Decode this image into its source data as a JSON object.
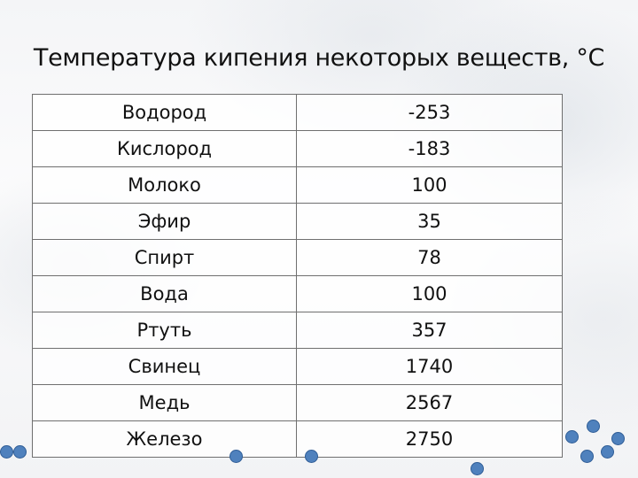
{
  "title": "Температура кипения некоторых веществ, °C",
  "rows": [
    {
      "substance": "Водород",
      "value": "-253"
    },
    {
      "substance": "Кислород",
      "value": "-183"
    },
    {
      "substance": "Молоко",
      "value": "100"
    },
    {
      "substance": "Эфир",
      "value": "35"
    },
    {
      "substance": "Спирт",
      "value": "78"
    },
    {
      "substance": "Вода",
      "value": "100"
    },
    {
      "substance": "Ртуть",
      "value": "357"
    },
    {
      "substance": "Свинец",
      "value": "1740"
    },
    {
      "substance": "Медь",
      "value": "2567"
    },
    {
      "substance": "Железо",
      "value": "2750"
    }
  ],
  "colors": {
    "dot_fill": "#4f81bd",
    "dot_border": "#2f5d96",
    "table_border": "#6f6f6f"
  }
}
